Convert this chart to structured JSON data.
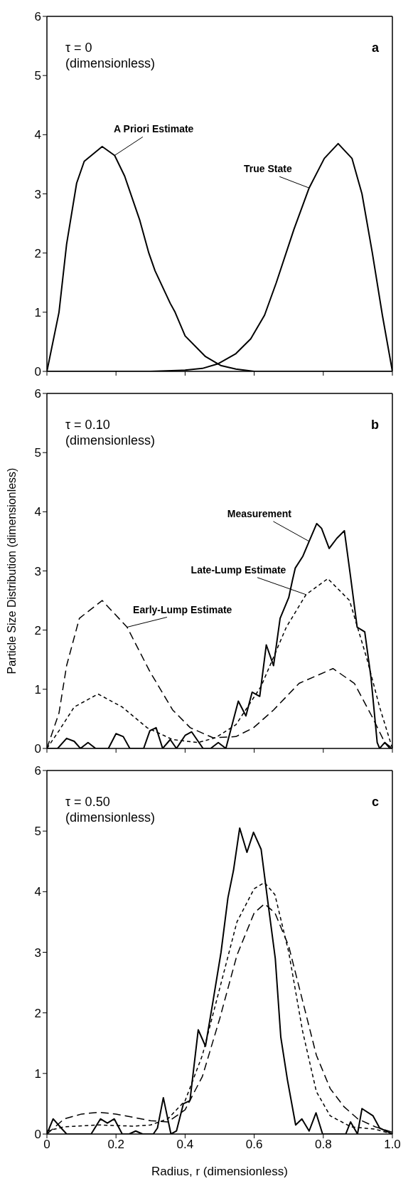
{
  "chart_data": [
    {
      "type": "line",
      "annotations": [
        "τ = 0\n(dimensionless)",
        "a"
      ],
      "xlim": [
        0,
        1
      ],
      "xticks": [
        0,
        0.2,
        0.4,
        0.6,
        0.8,
        1
      ],
      "ylim": [
        0,
        6
      ],
      "yticks": [
        0,
        1,
        2,
        3,
        4,
        5,
        6
      ],
      "tick_labels": "y",
      "marker": "none",
      "series": [
        {
          "name": "A Priori Estimate",
          "color": "#000000",
          "line_style": "solid",
          "x": [
            0,
            0.035,
            0.057,
            0.086,
            0.108,
            0.16,
            0.196,
            0.225,
            0.269,
            0.295,
            0.313,
            0.357,
            0.371,
            0.4,
            0.459,
            0.503,
            0.547,
            0.6,
            0.7,
            1.0
          ],
          "values": [
            0,
            1.0,
            2.15,
            3.18,
            3.55,
            3.8,
            3.65,
            3.3,
            2.55,
            2.0,
            1.7,
            1.15,
            1.0,
            0.6,
            0.25,
            0.1,
            0.04,
            0,
            0,
            0
          ]
        },
        {
          "name": "True State",
          "color": "#000000",
          "line_style": "solid",
          "x": [
            0,
            0.3,
            0.4,
            0.45,
            0.496,
            0.547,
            0.59,
            0.63,
            0.664,
            0.715,
            0.759,
            0.803,
            0.843,
            0.883,
            0.912,
            0.942,
            0.971,
            1.0
          ],
          "values": [
            0,
            0,
            0.02,
            0.05,
            0.13,
            0.3,
            0.55,
            0.95,
            1.5,
            2.4,
            3.1,
            3.6,
            3.85,
            3.6,
            3.0,
            2.0,
            0.95,
            0
          ]
        }
      ]
    },
    {
      "type": "line",
      "ylabel": "Particle Size Distribution  (dimensionless)",
      "annotations": [
        "τ = 0.10\n(dimensionless)",
        "b"
      ],
      "xlim": [
        0,
        1
      ],
      "xticks": [
        0,
        0.2,
        0.4,
        0.6,
        0.8,
        1
      ],
      "ylim": [
        0,
        6
      ],
      "yticks": [
        0,
        1,
        2,
        3,
        4,
        5,
        6
      ],
      "tick_labels": "y",
      "marker": "none",
      "series": [
        {
          "name": "Measurement",
          "color": "#000000",
          "line_style": "solid",
          "x": [
            0,
            0.031,
            0.057,
            0.079,
            0.097,
            0.119,
            0.141,
            0.178,
            0.2,
            0.221,
            0.24,
            0.28,
            0.298,
            0.316,
            0.335,
            0.357,
            0.375,
            0.4,
            0.419,
            0.452,
            0.474,
            0.496,
            0.518,
            0.554,
            0.576,
            0.594,
            0.616,
            0.635,
            0.656,
            0.675,
            0.7,
            0.711,
            0.719,
            0.741,
            0.759,
            0.781,
            0.795,
            0.817,
            0.839,
            0.861,
            0.879,
            0.898,
            0.92,
            0.938,
            0.956,
            0.963,
            0.978,
            0.993,
            1.0
          ],
          "values": [
            0,
            0,
            0.17,
            0.12,
            0,
            0.1,
            0,
            0,
            0.25,
            0.2,
            0,
            0,
            0.3,
            0.35,
            0,
            0.15,
            0,
            0.22,
            0.28,
            0,
            0,
            0.1,
            0,
            0.8,
            0.55,
            0.95,
            0.88,
            1.75,
            1.4,
            2.2,
            2.55,
            2.85,
            3.05,
            3.25,
            3.5,
            3.8,
            3.72,
            3.38,
            3.55,
            3.68,
            2.9,
            2.05,
            1.97,
            1.2,
            0.1,
            0,
            0.1,
            0,
            0
          ]
        },
        {
          "name": "Late-Lump Estimate",
          "color": "#000000",
          "line_style": "dashed",
          "x": [
            0,
            0.035,
            0.079,
            0.148,
            0.218,
            0.29,
            0.364,
            0.437,
            0.488,
            0.547,
            0.62,
            0.693,
            0.75,
            0.813,
            0.876,
            0.927,
            0.963,
            1.0
          ],
          "values": [
            0,
            0.3,
            0.7,
            0.92,
            0.7,
            0.35,
            0.15,
            0.1,
            0.18,
            0.4,
            1.05,
            2.05,
            2.6,
            2.87,
            2.5,
            1.5,
            0.7,
            0
          ]
        },
        {
          "name": "Early-Lump Estimate",
          "color": "#000000",
          "line_style": "dashed",
          "x": [
            0,
            0.035,
            0.057,
            0.094,
            0.16,
            0.232,
            0.298,
            0.364,
            0.415,
            0.481,
            0.547,
            0.598,
            0.656,
            0.73,
            0.828,
            0.89,
            0.94,
            0.978,
            1.0
          ],
          "values": [
            0,
            0.6,
            1.4,
            2.2,
            2.5,
            2.05,
            1.3,
            0.65,
            0.35,
            0.18,
            0.2,
            0.35,
            0.65,
            1.1,
            1.35,
            1.1,
            0.55,
            0.1,
            0
          ]
        }
      ]
    },
    {
      "type": "line",
      "xlabel": "Radius, r (dimensionless)",
      "annotations": [
        "τ = 0.50\n(dimensionless)",
        "c"
      ],
      "xlim": [
        0,
        1
      ],
      "xticks": [
        0,
        0.2,
        0.4,
        0.6,
        0.8,
        {
          "value": 1,
          "label": "1.0"
        }
      ],
      "ylim": [
        0,
        6
      ],
      "yticks": [
        0,
        1,
        2,
        3,
        4,
        5,
        6
      ],
      "marker": "none",
      "series": [
        {
          "color": "#000000",
          "line_style": "solid",
          "x": [
            0,
            0.018,
            0.038,
            0.057,
            0.128,
            0.155,
            0.175,
            0.195,
            0.218,
            0.238,
            0.257,
            0.277,
            0.308,
            0.32,
            0.337,
            0.359,
            0.375,
            0.395,
            0.414,
            0.438,
            0.459,
            0.481,
            0.504,
            0.524,
            0.54,
            0.558,
            0.579,
            0.598,
            0.62,
            0.638,
            0.661,
            0.677,
            0.696,
            0.72,
            0.738,
            0.759,
            0.779,
            0.798,
            0.865,
            0.879,
            0.899,
            0.912,
            0.944,
            0.963,
            1.0
          ],
          "values": [
            0,
            0.25,
            0.12,
            0,
            0,
            0.25,
            0.18,
            0.25,
            0,
            0,
            0.05,
            0,
            0,
            0.1,
            0.6,
            0,
            0.05,
            0.5,
            0.55,
            1.72,
            1.45,
            2.2,
            3.0,
            3.9,
            4.35,
            5.05,
            4.65,
            4.98,
            4.7,
            3.9,
            2.9,
            1.6,
            0.9,
            0.15,
            0.25,
            0.05,
            0.35,
            0,
            0,
            0.2,
            0,
            0.42,
            0.3,
            0.1,
            0
          ]
        },
        {
          "color": "#000000",
          "line_style": "dashed",
          "x": [
            0,
            0.05,
            0.15,
            0.25,
            0.3,
            0.35,
            0.4,
            0.45,
            0.5,
            0.55,
            0.6,
            0.63,
            0.66,
            0.7,
            0.74,
            0.78,
            0.82,
            0.88,
            0.95,
            1.0
          ],
          "values": [
            0.05,
            0.12,
            0.15,
            0.13,
            0.15,
            0.25,
            0.55,
            1.3,
            2.4,
            3.5,
            4.05,
            4.15,
            3.95,
            3.0,
            1.7,
            0.7,
            0.3,
            0.12,
            0.08,
            0
          ]
        },
        {
          "color": "#000000",
          "line_style": "dashed",
          "x": [
            0,
            0.05,
            0.1,
            0.15,
            0.2,
            0.3,
            0.35,
            0.4,
            0.45,
            0.5,
            0.55,
            0.6,
            0.63,
            0.66,
            0.7,
            0.74,
            0.78,
            0.82,
            0.86,
            0.9,
            0.95,
            1.0
          ],
          "values": [
            0,
            0.25,
            0.33,
            0.36,
            0.33,
            0.22,
            0.2,
            0.4,
            0.95,
            1.9,
            2.95,
            3.65,
            3.8,
            3.65,
            3.1,
            2.2,
            1.3,
            0.75,
            0.45,
            0.25,
            0.12,
            0.03
          ]
        }
      ]
    }
  ]
}
